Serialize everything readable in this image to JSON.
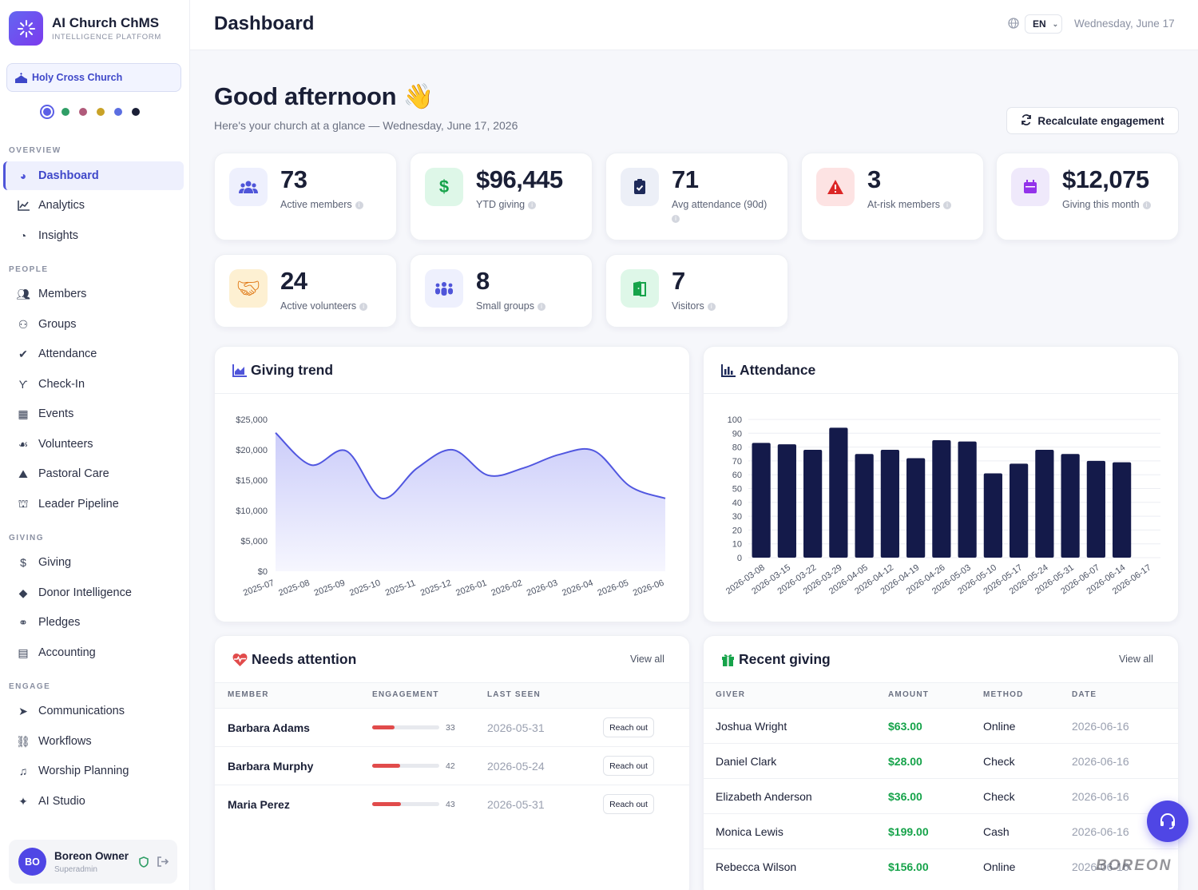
{
  "brand": {
    "title": "AI Church ChMS",
    "subtitle": "INTELLIGENCE PLATFORM"
  },
  "church": "Holy Cross Church",
  "theme_dots": [
    "#5b5fe6",
    "#2f9e66",
    "#b05a7a",
    "#c9a227",
    "#5b6ee1",
    "#1a1f36"
  ],
  "sidebar": {
    "sections": {
      "overview": "OVERVIEW",
      "people": "PEOPLE",
      "giving": "GIVING",
      "engage": "ENGAGE"
    },
    "items": [
      {
        "label": "Dashboard",
        "icon": "gauge-icon"
      },
      {
        "label": "Analytics",
        "icon": "chart-line-icon"
      },
      {
        "label": "Insights",
        "icon": "pie-chart-icon"
      },
      {
        "label": "Members",
        "icon": "users-icon"
      },
      {
        "label": "Groups",
        "icon": "people-group-icon"
      },
      {
        "label": "Attendance",
        "icon": "clipboard-check-icon"
      },
      {
        "label": "Check-In",
        "icon": "person-walking-icon"
      },
      {
        "label": "Events",
        "icon": "calendar-icon"
      },
      {
        "label": "Volunteers",
        "icon": "handshake-icon"
      },
      {
        "label": "Pastoral Care",
        "icon": "praying-hands-icon"
      },
      {
        "label": "Leader Pipeline",
        "icon": "graduation-cap-icon"
      },
      {
        "label": "Giving",
        "icon": "dollar-icon"
      },
      {
        "label": "Donor Intelligence",
        "icon": "gem-icon"
      },
      {
        "label": "Pledges",
        "icon": "handshake-icon"
      },
      {
        "label": "Accounting",
        "icon": "calculator-icon"
      },
      {
        "label": "Communications",
        "icon": "paper-plane-icon"
      },
      {
        "label": "Workflows",
        "icon": "diagram-icon"
      },
      {
        "label": "Worship Planning",
        "icon": "music-icon"
      },
      {
        "label": "AI Studio",
        "icon": "magic-wand-icon"
      }
    ]
  },
  "user": {
    "initials": "BO",
    "name": "Boreon Owner",
    "role": "Superadmin"
  },
  "header": {
    "title": "Dashboard",
    "lang": "EN",
    "date": "Wednesday, June 17"
  },
  "greeting": {
    "title": "Good afternoon 👋",
    "subtitle": "Here's your church at a glance — Wednesday, June 17, 2026"
  },
  "recalc_label": "Recalculate engagement",
  "stats": [
    {
      "value": "73",
      "label": "Active members"
    },
    {
      "value": "$96,445",
      "label": "YTD giving"
    },
    {
      "value": "71",
      "label": "Avg attendance (90d)"
    },
    {
      "value": "3",
      "label": "At-risk members"
    },
    {
      "value": "$12,075",
      "label": "Giving this month"
    },
    {
      "value": "24",
      "label": "Active volunteers"
    },
    {
      "value": "8",
      "label": "Small groups"
    },
    {
      "value": "7",
      "label": "Visitors"
    }
  ],
  "giving_trend": {
    "title": "Giving trend"
  },
  "attendance": {
    "title": "Attendance"
  },
  "chart_data": [
    {
      "type": "area",
      "title": "Giving trend",
      "x": [
        "2025-07",
        "2025-08",
        "2025-09",
        "2025-10",
        "2025-11",
        "2025-12",
        "2026-01",
        "2026-02",
        "2026-03",
        "2026-04",
        "2026-05",
        "2026-06"
      ],
      "values": [
        22800,
        17500,
        19800,
        12000,
        17000,
        20000,
        15800,
        17000,
        19200,
        19800,
        14000,
        12000
      ],
      "yticks": [
        "$0",
        "$5,000",
        "$10,000",
        "$15,000",
        "$20,000",
        "$25,000"
      ],
      "ylim": [
        0,
        25000
      ]
    },
    {
      "type": "bar",
      "title": "Attendance",
      "categories": [
        "2026-03-08",
        "2026-03-15",
        "2026-03-22",
        "2026-03-29",
        "2026-04-05",
        "2026-04-12",
        "2026-04-19",
        "2026-04-26",
        "2026-05-03",
        "2026-05-10",
        "2026-05-17",
        "2026-05-24",
        "2026-05-31",
        "2026-06-07",
        "2026-06-14",
        "2026-06-17"
      ],
      "values": [
        83,
        82,
        78,
        94,
        75,
        78,
        72,
        85,
        84,
        61,
        68,
        78,
        75,
        70,
        69,
        0
      ],
      "yticks": [
        "0",
        "10",
        "20",
        "30",
        "40",
        "50",
        "60",
        "70",
        "80",
        "90",
        "100"
      ],
      "ylim": [
        0,
        100
      ]
    }
  ],
  "needs_attention": {
    "title": "Needs attention",
    "view_all": "View all",
    "headers": [
      "MEMBER",
      "ENGAGEMENT",
      "LAST SEEN"
    ],
    "action": "Reach out",
    "rows": [
      {
        "name": "Barbara Adams",
        "score": "33",
        "last_seen": "2026-05-31"
      },
      {
        "name": "Barbara Murphy",
        "score": "42",
        "last_seen": "2026-05-24"
      },
      {
        "name": "Maria Perez",
        "score": "43",
        "last_seen": "2026-05-31"
      }
    ]
  },
  "recent_giving": {
    "title": "Recent giving",
    "view_all": "View all",
    "headers": [
      "GIVER",
      "AMOUNT",
      "METHOD",
      "DATE"
    ],
    "rows": [
      {
        "giver": "Joshua Wright",
        "amount": "$63.00",
        "method": "Online",
        "date": "2026-06-16"
      },
      {
        "giver": "Daniel Clark",
        "amount": "$28.00",
        "method": "Check",
        "date": "2026-06-16"
      },
      {
        "giver": "Elizabeth Anderson",
        "amount": "$36.00",
        "method": "Check",
        "date": "2026-06-16"
      },
      {
        "giver": "Monica Lewis",
        "amount": "$199.00",
        "method": "Cash",
        "date": "2026-06-16"
      },
      {
        "giver": "Rebecca Wilson",
        "amount": "$156.00",
        "method": "Online",
        "date": "2026-06-16"
      }
    ]
  },
  "watermark": "BOREON"
}
